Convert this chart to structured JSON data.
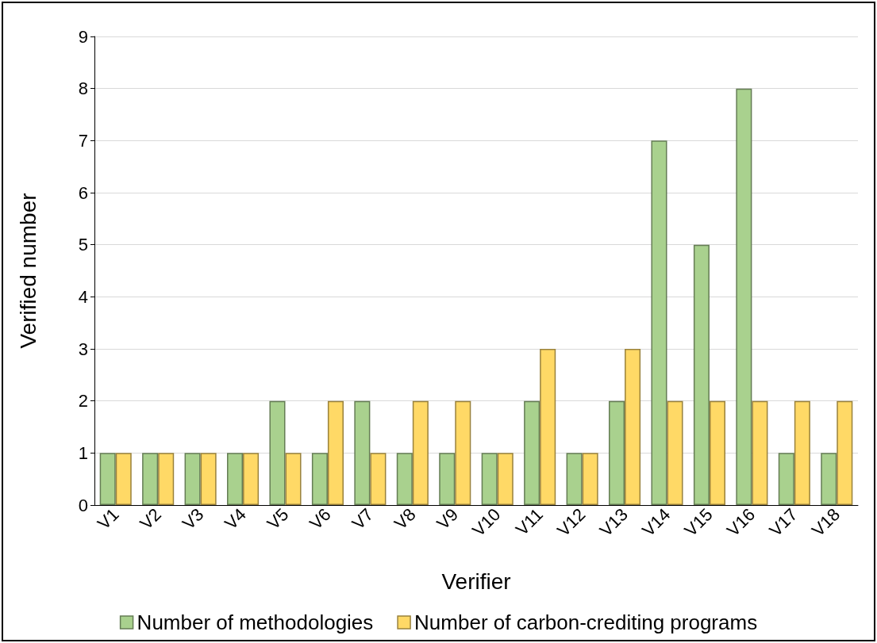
{
  "chart_data": {
    "type": "bar",
    "xlabel": "Verifier",
    "ylabel": "Verified number",
    "categories": [
      "V1",
      "V2",
      "V3",
      "V4",
      "V5",
      "V6",
      "V7",
      "V8",
      "V9",
      "V10",
      "V11",
      "V12",
      "V13",
      "V14",
      "V15",
      "V16",
      "V17",
      "V18"
    ],
    "series": [
      {
        "name": "Number of methodologies",
        "color": "#a9d18e",
        "values": [
          1,
          1,
          1,
          1,
          2,
          1,
          2,
          1,
          1,
          1,
          2,
          1,
          2,
          7,
          5,
          8,
          1,
          1
        ]
      },
      {
        "name": "Number of carbon-crediting programs",
        "color": "#ffd966",
        "values": [
          1,
          1,
          1,
          1,
          1,
          2,
          1,
          2,
          2,
          1,
          3,
          1,
          3,
          2,
          2,
          2,
          2,
          2
        ]
      }
    ],
    "ylim": [
      0,
      9
    ],
    "yticks": [
      0,
      1,
      2,
      3,
      4,
      5,
      6,
      7,
      8,
      9
    ],
    "grid": "y",
    "legend": "bottom"
  }
}
